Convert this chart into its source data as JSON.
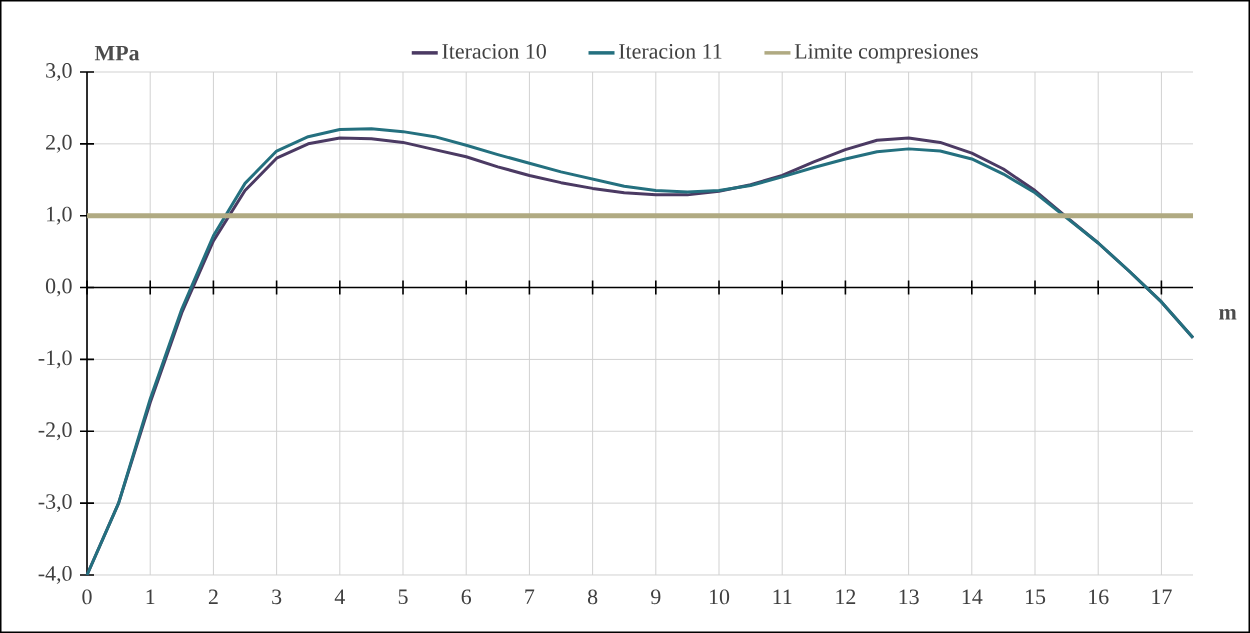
{
  "chart_data": {
    "type": "line",
    "xlabel": "m",
    "ylabel": "MPa",
    "x": [
      0,
      0.5,
      1,
      1.5,
      2,
      2.5,
      3,
      3.5,
      4,
      4.5,
      5,
      5.5,
      6,
      6.5,
      7,
      7.5,
      8,
      8.5,
      9,
      9.5,
      10,
      10.5,
      11,
      11.5,
      12,
      12.5,
      13,
      13.5,
      14,
      14.5,
      15,
      15.5,
      16,
      16.5,
      17,
      17.5
    ],
    "series": [
      {
        "name": "Iteracion 10",
        "color": "#4b3a63",
        "values": [
          -4.0,
          -3.0,
          -1.6,
          -0.35,
          0.65,
          1.35,
          1.8,
          2.0,
          2.08,
          2.07,
          2.02,
          1.92,
          1.82,
          1.68,
          1.56,
          1.46,
          1.38,
          1.32,
          1.29,
          1.29,
          1.34,
          1.43,
          1.56,
          1.75,
          1.92,
          2.05,
          2.08,
          2.02,
          1.87,
          1.65,
          1.35,
          0.98,
          0.62,
          0.22,
          -0.2,
          -0.7
        ]
      },
      {
        "name": "Iteracion 11",
        "color": "#24707f",
        "values": [
          -4.0,
          -3.0,
          -1.55,
          -0.3,
          0.72,
          1.45,
          1.9,
          2.1,
          2.2,
          2.21,
          2.17,
          2.1,
          1.98,
          1.85,
          1.73,
          1.61,
          1.51,
          1.41,
          1.35,
          1.33,
          1.35,
          1.42,
          1.54,
          1.67,
          1.79,
          1.89,
          1.93,
          1.9,
          1.79,
          1.58,
          1.32,
          0.97,
          0.62,
          0.22,
          -0.2,
          -0.7
        ]
      },
      {
        "name": "Limite compresiones",
        "color": "#b0aa82",
        "x": [
          0,
          17.5
        ],
        "values": [
          1.0,
          1.0
        ]
      }
    ],
    "xlim": [
      0,
      17.5
    ],
    "xticks": [
      0,
      1,
      2,
      3,
      4,
      5,
      6,
      7,
      8,
      9,
      10,
      11,
      12,
      13,
      14,
      15,
      16,
      17
    ],
    "ylim": [
      -4,
      3
    ],
    "yticks": [
      {
        "value": -4,
        "label": "-4,0"
      },
      {
        "value": -3,
        "label": "-3,0"
      },
      {
        "value": -2,
        "label": "-2,0"
      },
      {
        "value": -1,
        "label": "-1,0"
      },
      {
        "value": 0,
        "label": "0,0"
      },
      {
        "value": 1,
        "label": "1,0"
      },
      {
        "value": 2,
        "label": "2,0"
      },
      {
        "value": 3,
        "label": "3,0"
      }
    ],
    "grid": true,
    "legend": "top",
    "marker": "none",
    "line_style": "solid"
  }
}
